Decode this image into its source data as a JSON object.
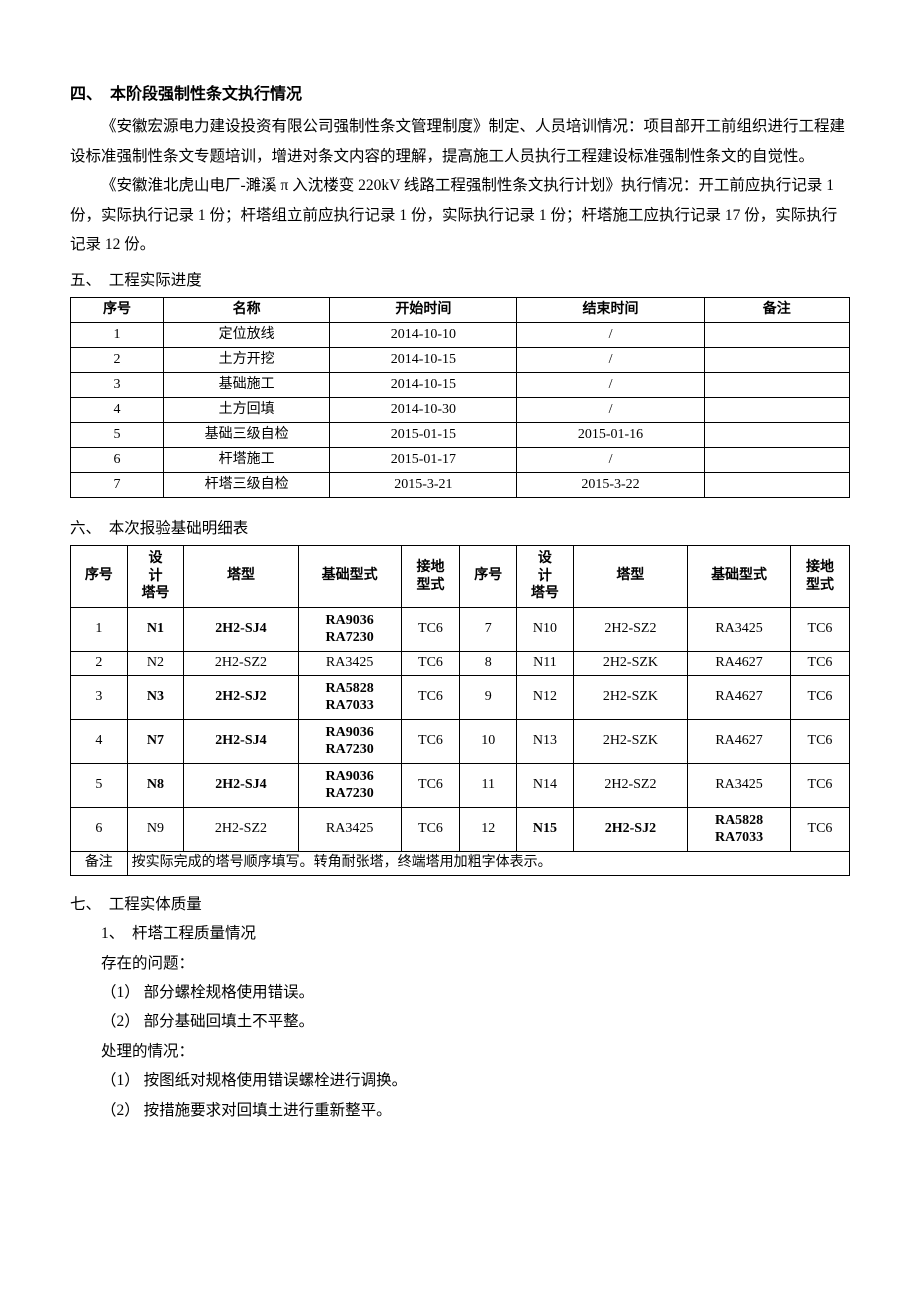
{
  "section4": {
    "heading": "四、　本阶段强制性条文执行情况",
    "p1": "《安徽宏源电力建设投资有限公司强制性条文管理制度》制定、人员培训情况：项目部开工前组织进行工程建设标准强制性条文专题培训，增进对条文内容的理解，提高施工人员执行工程建设标准强制性条文的自觉性。",
    "p2": "《安徽淮北虎山电厂-濉溪 π 入沈楼变 220kV 线路工程强制性条文执行计划》执行情况：开工前应执行记录 1 份，实际执行记录 1 份；杆塔组立前应执行记录 1 份，实际执行记录 1 份；杆塔施工应执行记录 17 份，实际执行记录 12 份。"
  },
  "section5": {
    "heading": "五、　工程实际进度",
    "columns": [
      "序号",
      "名称",
      "开始时间",
      "结束时间",
      "备注"
    ],
    "rows": [
      [
        "1",
        "定位放线",
        "2014-10-10",
        "/",
        ""
      ],
      [
        "2",
        "土方开挖",
        "2014-10-15",
        "/",
        ""
      ],
      [
        "3",
        "基础施工",
        "2014-10-15",
        "/",
        ""
      ],
      [
        "4",
        "土方回填",
        "2014-10-30",
        "/",
        ""
      ],
      [
        "5",
        "基础三级自检",
        "2015-01-15",
        "2015-01-16",
        ""
      ],
      [
        "6",
        "杆塔施工",
        "2015-01-17",
        "/",
        ""
      ],
      [
        "7",
        "杆塔三级自检",
        "2015-3-21",
        "2015-3-22",
        ""
      ]
    ]
  },
  "section6": {
    "heading": "六、　本次报验基础明细表",
    "columns": [
      "序号",
      "设计塔号",
      "塔型",
      "基础型式",
      "接地型式",
      "序号",
      "设计塔号",
      "塔型",
      "基础型式",
      "接地型式"
    ],
    "headerLines": {
      "c1": "序号",
      "c2a": "设",
      "c2b": "计",
      "c2c": "塔号",
      "c3": "塔型",
      "c4": "基础型式",
      "c5a": "接地",
      "c5b": "型式",
      "c6": "序号",
      "c7a": "设",
      "c7b": "计",
      "c7c": "塔号",
      "c8": "塔型",
      "c9": "基础型式",
      "c10a": "接地",
      "c10b": "型式"
    },
    "rows": [
      {
        "l": [
          "1",
          "N1",
          "2H2-SJ4",
          "RA9036\nRA7230",
          "TC6"
        ],
        "lbold": [
          false,
          true,
          true,
          true,
          false
        ],
        "r": [
          "7",
          "N10",
          "2H2-SZ2",
          "RA3425",
          "TC6"
        ],
        "rbold": [
          false,
          false,
          false,
          false,
          false
        ]
      },
      {
        "l": [
          "2",
          "N2",
          "2H2-SZ2",
          "RA3425",
          "TC6"
        ],
        "lbold": [
          false,
          false,
          false,
          false,
          false
        ],
        "r": [
          "8",
          "N11",
          "2H2-SZK",
          "RA4627",
          "TC6"
        ],
        "rbold": [
          false,
          false,
          false,
          false,
          false
        ]
      },
      {
        "l": [
          "3",
          "N3",
          "2H2-SJ2",
          "RA5828\nRA7033",
          "TC6"
        ],
        "lbold": [
          false,
          true,
          true,
          true,
          false
        ],
        "r": [
          "9",
          "N12",
          "2H2-SZK",
          "RA4627",
          "TC6"
        ],
        "rbold": [
          false,
          false,
          false,
          false,
          false
        ]
      },
      {
        "l": [
          "4",
          "N7",
          "2H2-SJ4",
          "RA9036\nRA7230",
          "TC6"
        ],
        "lbold": [
          false,
          true,
          true,
          true,
          false
        ],
        "r": [
          "10",
          "N13",
          "2H2-SZK",
          "RA4627",
          "TC6"
        ],
        "rbold": [
          false,
          false,
          false,
          false,
          false
        ]
      },
      {
        "l": [
          "5",
          "N8",
          "2H2-SJ4",
          "RA9036\nRA7230",
          "TC6"
        ],
        "lbold": [
          false,
          true,
          true,
          true,
          false
        ],
        "r": [
          "11",
          "N14",
          "2H2-SZ2",
          "RA3425",
          "TC6"
        ],
        "rbold": [
          false,
          false,
          false,
          false,
          false
        ]
      },
      {
        "l": [
          "6",
          "N9",
          "2H2-SZ2",
          "RA3425",
          "TC6"
        ],
        "lbold": [
          false,
          false,
          false,
          false,
          false
        ],
        "r": [
          "12",
          "N15",
          "2H2-SJ2",
          "RA5828\nRA7033",
          "TC6"
        ],
        "rbold": [
          false,
          true,
          true,
          true,
          false
        ]
      }
    ],
    "noteLabel": "备注",
    "noteText": "按实际完成的塔号顺序填写。转角耐张塔，终端塔用加粗字体表示。"
  },
  "section7": {
    "heading": "七、　工程实体质量",
    "sub1": "1、　杆塔工程质量情况",
    "problemsLabel": "存在的问题：",
    "p1": "（1）  部分螺栓规格使用错误。",
    "p2": "（2）  部分基础回填土不平整。",
    "handleLabel": "处理的情况：",
    "h1": "（1）  按图纸对规格使用错误螺栓进行调换。",
    "h2": "（2）  按措施要求对回填土进行重新整平。"
  }
}
